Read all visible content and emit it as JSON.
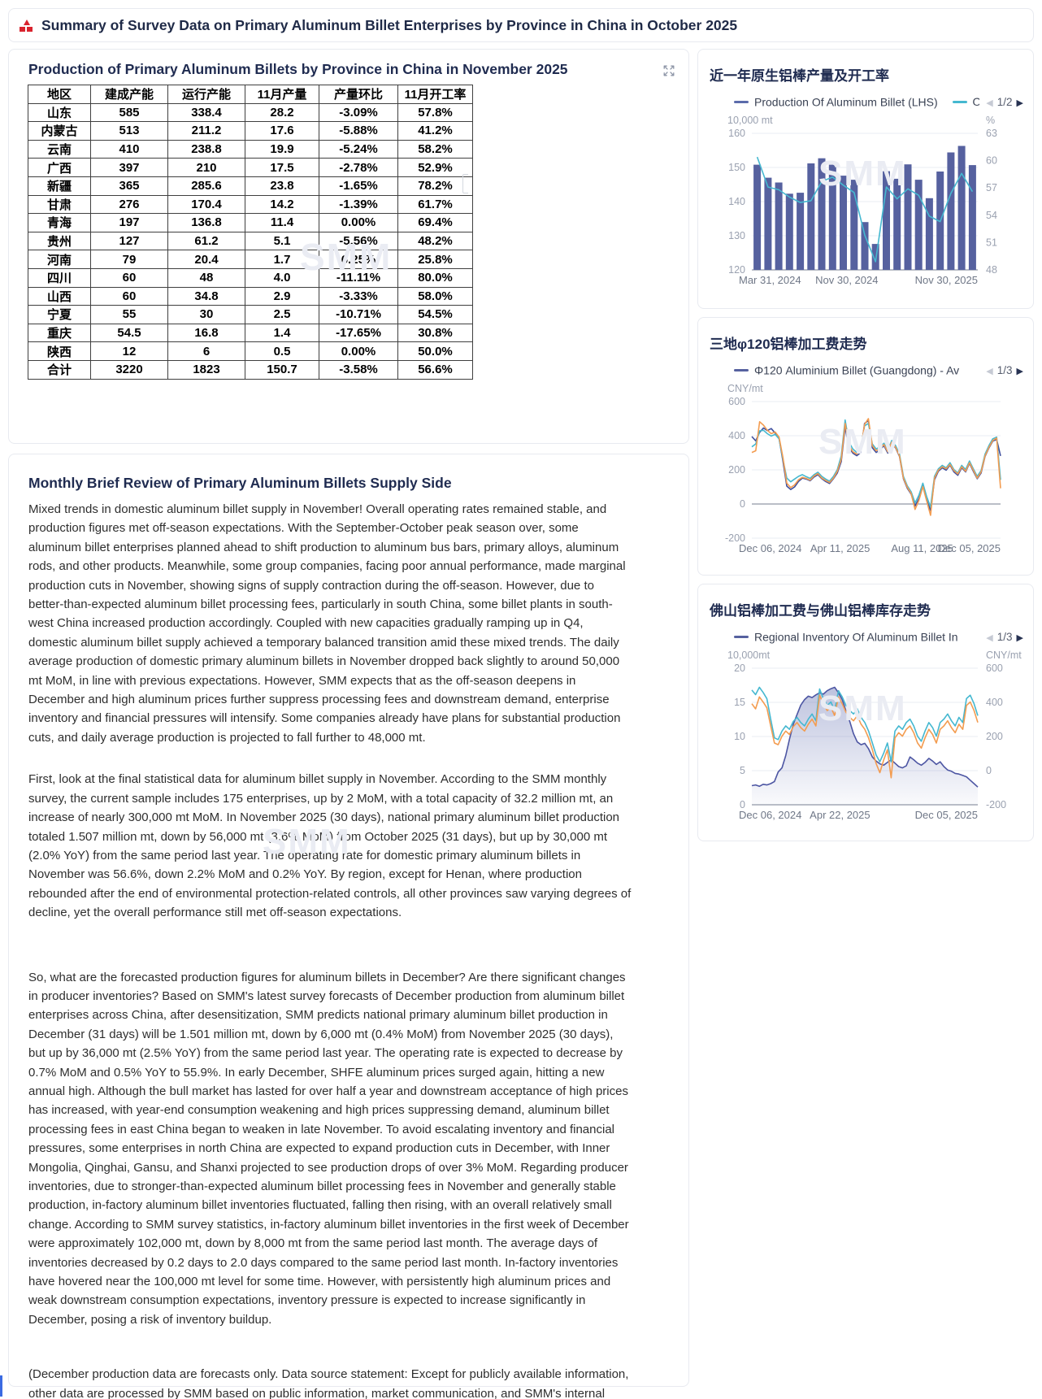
{
  "watermark": "SMM",
  "header": {
    "title": "Summary of Survey Data on Primary Aluminum Billet Enterprises by Province in China in October 2025",
    "logo_color": "#d9232e"
  },
  "table_card": {
    "title": "Production of Primary Aluminum Billets by Province in China in November 2025",
    "columns": [
      "地区",
      "建成产能",
      "运行产能",
      "11月产量",
      "产量环比",
      "11月开工率"
    ],
    "rows": [
      [
        "山东",
        "585",
        "338.4",
        "28.2",
        "-3.09%",
        "57.8%"
      ],
      [
        "内蒙古",
        "513",
        "211.2",
        "17.6",
        "-5.88%",
        "41.2%"
      ],
      [
        "云南",
        "410",
        "238.8",
        "19.9",
        "-5.24%",
        "58.2%"
      ],
      [
        "广西",
        "397",
        "210",
        "17.5",
        "-2.78%",
        "52.9%"
      ],
      [
        "新疆",
        "365",
        "285.6",
        "23.8",
        "-1.65%",
        "78.2%"
      ],
      [
        "甘肃",
        "276",
        "170.4",
        "14.2",
        "-1.39%",
        "61.7%"
      ],
      [
        "青海",
        "197",
        "136.8",
        "11.4",
        "0.00%",
        "69.4%"
      ],
      [
        "贵州",
        "127",
        "61.2",
        "5.1",
        "-5.56%",
        "48.2%"
      ],
      [
        "河南",
        "79",
        "20.4",
        "1.7",
        "6.25%",
        "25.8%"
      ],
      [
        "四川",
        "60",
        "48",
        "4.0",
        "-11.11%",
        "80.0%"
      ],
      [
        "山西",
        "60",
        "34.8",
        "2.9",
        "-3.33%",
        "58.0%"
      ],
      [
        "宁夏",
        "55",
        "30",
        "2.5",
        "-10.71%",
        "54.5%"
      ],
      [
        "重庆",
        "54.5",
        "16.8",
        "1.4",
        "-17.65%",
        "30.8%"
      ],
      [
        "陕西",
        "12",
        "6",
        "0.5",
        "0.00%",
        "50.0%"
      ],
      [
        "合计",
        "3220",
        "1823",
        "150.7",
        "-3.58%",
        "56.6%"
      ]
    ]
  },
  "review": {
    "title": "Monthly Brief Review of Primary Aluminum Billets Supply Side",
    "paragraphs": [
      "Mixed trends in domestic aluminum billet supply in November! Overall operating rates remained stable, and production figures met off-season expectations. With the September-October peak season over, some aluminum billet enterprises planned ahead to shift production to aluminum bus bars, primary alloys, aluminum rods, and other products. Meanwhile, some group companies, facing poor annual performance, made marginal production cuts in November, showing signs of supply contraction during the off-season. However, due to better-than-expected aluminum billet processing fees, particularly in south China, some billet plants in south-west China increased production accordingly. Coupled with new capacities gradually ramping up in Q4, domestic aluminum billet supply achieved a temporary balanced transition amid these mixed trends. The daily average production of domestic primary aluminum billets in November dropped back slightly to around 50,000 mt MoM, in line with previous expectations. However, SMM expects that as the off-season deepens in December and high aluminum prices further suppress processing fees and downstream demand, enterprise inventory and financial pressures will intensify. Some companies already have plans for substantial production cuts, and daily average production is projected to fall further to 48,000 mt.",
      "First, look at the final statistical data for aluminum billet supply in November. According to the SMM monthly survey, the current sample includes 175 enterprises, up by 2 MoM, with a total capacity of 32.2 million mt, an increase of nearly 300,000 mt MoM. In November 2025 (30 days), national primary aluminum billet production totaled 1.507 million mt, down by 56,000 mt (3.6% MoM) from October 2025 (31 days), but up by 30,000 mt (2.0% YoY) from the same period last year. The operating rate for domestic primary aluminum billets in November was 56.6%, down 2.2% MoM and 0.2% YoY. By region, except for Henan, where production rebounded after the end of environmental protection-related controls, all other provinces saw varying degrees of decline, yet the overall performance still met off-season expectations.",
      "So, what are the forecasted production figures for aluminum billets in December? Are there significant changes in producer inventories? Based on SMM's latest survey forecasts of December production from aluminum billet enterprises across China, after desensitization, SMM predicts national primary aluminum billet production in December (31 days) will be 1.501 million mt, down by 6,000 mt (0.4% MoM) from November 2025 (30 days), but up by 36,000 mt (2.5% YoY) from the same period last year. The operating rate is expected to decrease by 0.7% MoM and 0.5% YoY to 55.9%. In early December, SHFE aluminum prices surged again, hitting a new annual high. Although the bull market has lasted for over half a year and downstream acceptance of high prices has increased, with year-end consumption weakening and high prices suppressing demand, aluminum billet processing fees in east China began to weaken in late November. To avoid escalating inventory and financial pressures, some enterprises in north China are expected to expand production cuts in December, with Inner Mongolia, Qinghai, Gansu, and Shanxi projected to see production drops of over 3% MoM. Regarding producer inventories, due to stronger-than-expected aluminum billet processing fees in November and generally stable production, in-factory aluminum billet inventories fluctuated, falling then rising, with an overall relatively small change. According to SMM survey statistics, in-factory aluminum billet inventories in the first week of December were approximately 102,000 mt, down by 8,000 mt from the same period last month. The average days of inventories decreased by 0.2 days to 2.0 days compared to the same period last month. In-factory inventories have hovered near the 100,000 mt level for some time. However, with persistently high aluminum prices and weak downstream consumption expectations, inventory pressure is expected to increase significantly in December, posing a risk of inventory buildup.",
      "(December production data are forecasts only. Data source statement: Except for publicly available information, other data are processed by SMM based on public information, market communication, and SMM's internal database models, for reference only and do not constitute decision-making advice.)"
    ]
  },
  "chart_data": [
    {
      "type": "bar",
      "title": "近一年原生铝棒产量及开工率",
      "pager": "1/2",
      "legend": [
        {
          "label": "Production Of Aluminum Billet (LHS)",
          "color": "#5b6bab"
        },
        {
          "label": "O",
          "color": "#45b8d0"
        }
      ],
      "bar_color": "#56619f",
      "left_axis": {
        "unit": "10,000 mt",
        "min": 120,
        "max": 160,
        "ticks": [
          160,
          150,
          140,
          130,
          120
        ]
      },
      "right_axis": {
        "unit": "%",
        "min": 48,
        "max": 63,
        "ticks": [
          63,
          60,
          57,
          54,
          51,
          48
        ]
      },
      "x_labels": [
        {
          "text": "Mar 31, 2024",
          "pos": 0
        },
        {
          "text": "Nov 30, 2024",
          "pos": 0.42
        },
        {
          "text": "Nov 30, 2025",
          "pos": 1
        }
      ],
      "series": [
        {
          "name": "production_of_aluminum_billet",
          "type": "bar",
          "axis": "left",
          "values": [
            150.8,
            147.0,
            145.6,
            142.3,
            142.6,
            151.2,
            152.7,
            150.8,
            147.6,
            146.4,
            134.0,
            127.6,
            148.9,
            146.7,
            150.9,
            146.4,
            141.0,
            148.8,
            154.4,
            156.3,
            150.7
          ]
        },
        {
          "name": "operating_rate",
          "type": "line",
          "axis": "right",
          "color": "#45b8d0",
          "values": [
            60.4,
            57.1,
            56.8,
            56.0,
            55.4,
            55.6,
            57.7,
            58.2,
            57.3,
            56.5,
            51.8,
            48.9,
            57.1,
            55.8,
            56.9,
            56.2,
            53.9,
            53.3,
            56.4,
            58.6,
            56.6
          ]
        }
      ]
    },
    {
      "type": "line",
      "title": "三地φ120铝棒加工费走势",
      "pager": "1/3",
      "legend": [
        {
          "label": "Φ120 Aluminium Billet (Guangdong) - Av",
          "color": "#56619f"
        }
      ],
      "left_axis": {
        "unit": "CNY/mt",
        "min": -200,
        "max": 600,
        "ticks": [
          600,
          400,
          200,
          0,
          -200
        ]
      },
      "x_labels": [
        {
          "text": "Dec 06, 2024",
          "pos": 0
        },
        {
          "text": "Apr 11, 2025",
          "pos": 0.355
        },
        {
          "text": "Aug 11, 2025",
          "pos": 0.685
        },
        {
          "text": "Dec 05, 2025",
          "pos": 1
        }
      ],
      "series": [
        {
          "name": "series_1",
          "type": "line",
          "axis": "left",
          "color": "#3f4f9e",
          "values": [
            395,
            370,
            420,
            445,
            430,
            442,
            415,
            385,
            250,
            105,
            85,
            100,
            132,
            152,
            146,
            136,
            158,
            172,
            148,
            132,
            120,
            148,
            182,
            248,
            452,
            330,
            298,
            283,
            302,
            472,
            488,
            330,
            302,
            318,
            342,
            298,
            358,
            328,
            278,
            148,
            92,
            58,
            -12,
            32,
            108,
            22,
            -38,
            142,
            192,
            212,
            198,
            228,
            188,
            168,
            212,
            188,
            238,
            192,
            148,
            182,
            278,
            328,
            368,
            378,
            282
          ]
        },
        {
          "name": "series_2",
          "type": "line",
          "axis": "left",
          "color": "#45b8d0",
          "values": [
            335,
            352,
            428,
            432,
            412,
            398,
            408,
            382,
            262,
            152,
            130,
            146,
            162,
            172,
            160,
            150,
            172,
            186,
            162,
            146,
            134,
            162,
            202,
            282,
            492,
            362,
            322,
            302,
            322,
            458,
            472,
            352,
            322,
            336,
            356,
            312,
            372,
            342,
            292,
            162,
            106,
            72,
            6,
            52,
            122,
            42,
            -18,
            162,
            206,
            226,
            212,
            242,
            202,
            182,
            226,
            202,
            252,
            206,
            162,
            196,
            292,
            342,
            382,
            392,
            142
          ]
        },
        {
          "name": "series_3",
          "type": "line",
          "axis": "left",
          "color": "#f39c50",
          "values": [
            302,
            312,
            482,
            462,
            432,
            412,
            422,
            392,
            272,
            122,
            96,
            112,
            142,
            156,
            150,
            140,
            164,
            178,
            152,
            138,
            126,
            152,
            192,
            262,
            472,
            342,
            306,
            292,
            312,
            466,
            500,
            342,
            312,
            326,
            348,
            306,
            362,
            332,
            282,
            152,
            98,
            62,
            -32,
            22,
            102,
            16,
            -66,
            152,
            198,
            218,
            206,
            232,
            196,
            176,
            218,
            192,
            242,
            198,
            152,
            188,
            282,
            332,
            372,
            386,
            92
          ]
        }
      ]
    },
    {
      "type": "area",
      "title": "佛山铝棒加工费与佛山铝棒库存走势",
      "pager": "1/3",
      "legend": [
        {
          "label": "Regional Inventory Of Aluminum Billet In",
          "color": "#56619f"
        }
      ],
      "left_axis": {
        "unit": "10,000mt",
        "min": 0,
        "max": 20,
        "ticks": [
          20,
          15,
          10,
          5,
          0
        ]
      },
      "right_axis": {
        "unit": "CNY/mt",
        "min": -200,
        "max": 600,
        "ticks": [
          600,
          400,
          200,
          0,
          -200
        ]
      },
      "x_labels": [
        {
          "text": "Dec 06, 2024",
          "pos": 0
        },
        {
          "text": "Apr 22, 2025",
          "pos": 0.39
        },
        {
          "text": "Dec 05, 2025",
          "pos": 1
        }
      ],
      "series": [
        {
          "name": "regional_inventory",
          "type": "area",
          "axis": "left",
          "color": "#4d56a3",
          "values": [
            2.8,
            2.9,
            2.7,
            3.0,
            2.9,
            3.1,
            3.4,
            4.8,
            5.4,
            7.2,
            9.6,
            11.8,
            13.2,
            14.6,
            15.4,
            15.9,
            15.7,
            16.1,
            16.4,
            16.2,
            16.7,
            17.0,
            17.2,
            16.4,
            15.4,
            13.8,
            12.2,
            10.4,
            9.2,
            8.8,
            9.0,
            8.2,
            7.0,
            6.4,
            6.0,
            5.8,
            6.2,
            6.6,
            6.1,
            5.6,
            5.4,
            5.7,
            7.0,
            6.6,
            6.1,
            5.8,
            6.2,
            6.8,
            6.4,
            5.9,
            6.3,
            5.6,
            5.1,
            4.9,
            4.6,
            4.5,
            4.3,
            4.1,
            3.6,
            3.1,
            2.6
          ]
        },
        {
          "name": "series_2",
          "type": "line",
          "axis": "right",
          "color": "#45b8d0",
          "values": [
            472,
            445,
            488,
            458,
            422,
            302,
            192,
            182,
            232,
            262,
            242,
            288,
            312,
            282,
            262,
            302,
            332,
            292,
            478,
            422,
            382,
            402,
            352,
            468,
            432,
            382,
            352,
            332,
            362,
            312,
            282,
            232,
            162,
            92,
            52,
            102,
            162,
            52,
            232,
            262,
            242,
            282,
            302,
            262,
            202,
            172,
            232,
            282,
            252,
            202,
            282,
            302,
            332,
            292,
            262,
            312,
            282,
            422,
            442,
            392,
            322
          ]
        },
        {
          "name": "series_3",
          "type": "line",
          "axis": "right",
          "color": "#f39c50",
          "values": [
            392,
            362,
            432,
            402,
            368,
            262,
            162,
            152,
            202,
            232,
            212,
            258,
            282,
            252,
            232,
            272,
            302,
            262,
            442,
            392,
            352,
            372,
            322,
            432,
            392,
            342,
            312,
            292,
            322,
            272,
            242,
            192,
            122,
            42,
            -12,
            62,
            122,
            -42,
            192,
            222,
            202,
            242,
            262,
            222,
            162,
            132,
            192,
            242,
            212,
            162,
            242,
            262,
            292,
            252,
            222,
            272,
            242,
            382,
            402,
            352,
            282
          ]
        }
      ]
    }
  ]
}
